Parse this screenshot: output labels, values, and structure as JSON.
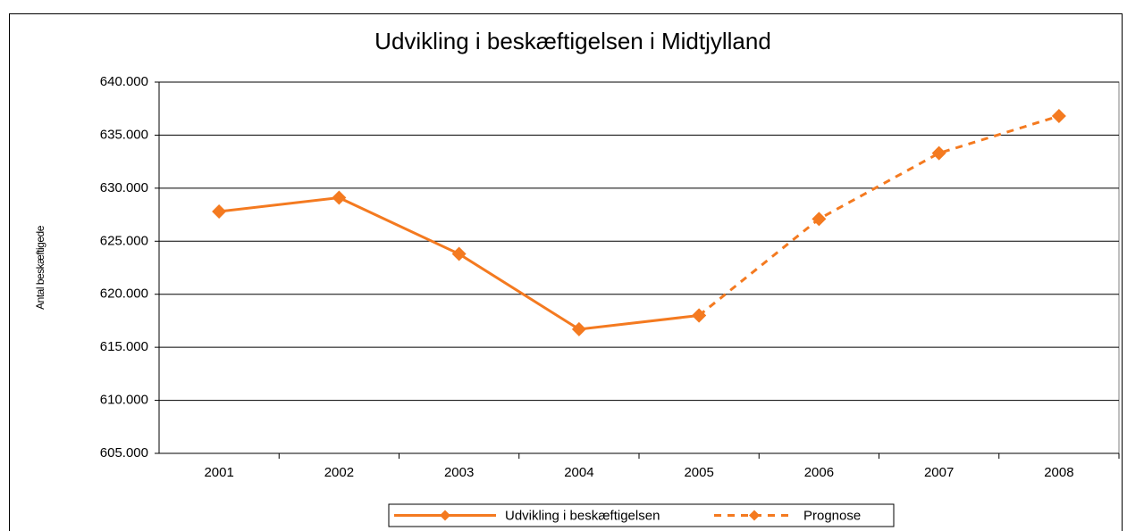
{
  "chart_data": {
    "type": "line",
    "title": "Udvikling i beskæftigelsen i Midtjylland",
    "y_label": "Antal beskæftigede",
    "categories": [
      "2001",
      "2002",
      "2003",
      "2004",
      "2005",
      "2006",
      "2007",
      "2008"
    ],
    "series": [
      {
        "name": "Udvikling i beskæftigelsen",
        "color": "#f47a20",
        "dashed": false,
        "values": [
          627800,
          629100,
          623800,
          616700,
          618000,
          null,
          null,
          null
        ]
      },
      {
        "name": "Prognose",
        "color": "#f47a20",
        "dashed": true,
        "values": [
          null,
          null,
          null,
          null,
          618000,
          627100,
          633300,
          636800
        ]
      }
    ],
    "ylim": [
      605000,
      640000
    ],
    "yticks": [
      {
        "value": 605000,
        "label": "605.000"
      },
      {
        "value": 610000,
        "label": "610.000"
      },
      {
        "value": 615000,
        "label": "615.000"
      },
      {
        "value": 620000,
        "label": "620.000"
      },
      {
        "value": 625000,
        "label": "625.000"
      },
      {
        "value": 630000,
        "label": "630.000"
      },
      {
        "value": 635000,
        "label": "635.000"
      },
      {
        "value": 640000,
        "label": "640.000"
      }
    ],
    "grid": true,
    "legend": "bottom"
  }
}
